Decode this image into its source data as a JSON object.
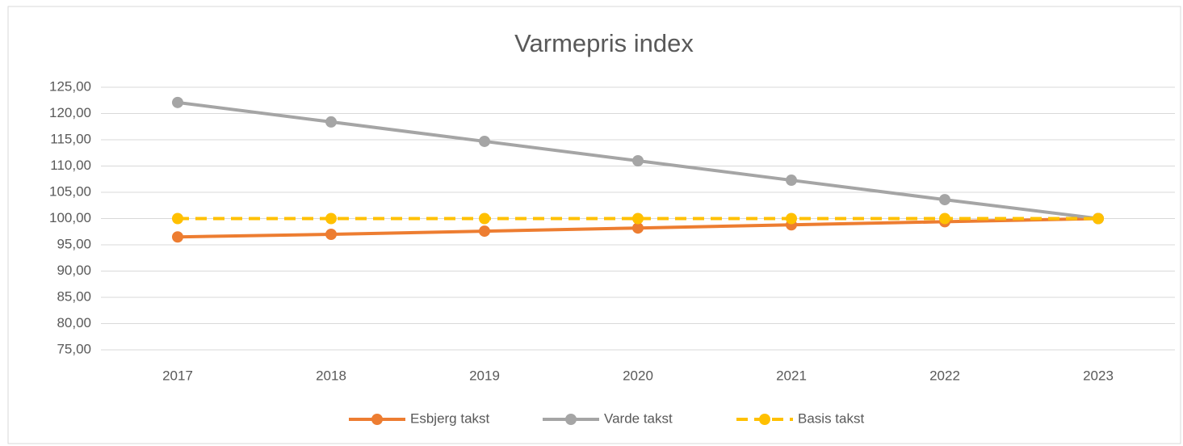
{
  "chart_data": {
    "type": "line",
    "title": "Varmepris index",
    "categories": [
      "2017",
      "2018",
      "2019",
      "2020",
      "2021",
      "2022",
      "2023"
    ],
    "series": [
      {
        "name": "Esbjerg takst",
        "color": "#ed7d31",
        "style": "solid",
        "values": [
          96.5,
          97.0,
          97.6,
          98.2,
          98.8,
          99.4,
          100.0
        ]
      },
      {
        "name": "Varde takst",
        "color": "#a5a5a5",
        "style": "solid",
        "values": [
          122.1,
          118.4,
          114.7,
          111.0,
          107.3,
          103.6,
          100.0
        ]
      },
      {
        "name": "Basis takst",
        "color": "#ffc000",
        "style": "dashed",
        "values": [
          100,
          100,
          100,
          100,
          100,
          100,
          100
        ]
      }
    ],
    "ylim": [
      75,
      125
    ],
    "yticks": [
      {
        "value": 75,
        "label": "75,00"
      },
      {
        "value": 80,
        "label": "80,00"
      },
      {
        "value": 85,
        "label": "85,00"
      },
      {
        "value": 90,
        "label": "90,00"
      },
      {
        "value": 95,
        "label": "95,00"
      },
      {
        "value": 100,
        "label": "100,00"
      },
      {
        "value": 105,
        "label": "105,00"
      },
      {
        "value": 110,
        "label": "110,00"
      },
      {
        "value": 115,
        "label": "115,00"
      },
      {
        "value": 120,
        "label": "120,00"
      },
      {
        "value": 125,
        "label": "125,00"
      }
    ],
    "grid": true,
    "legend": "bottom"
  }
}
